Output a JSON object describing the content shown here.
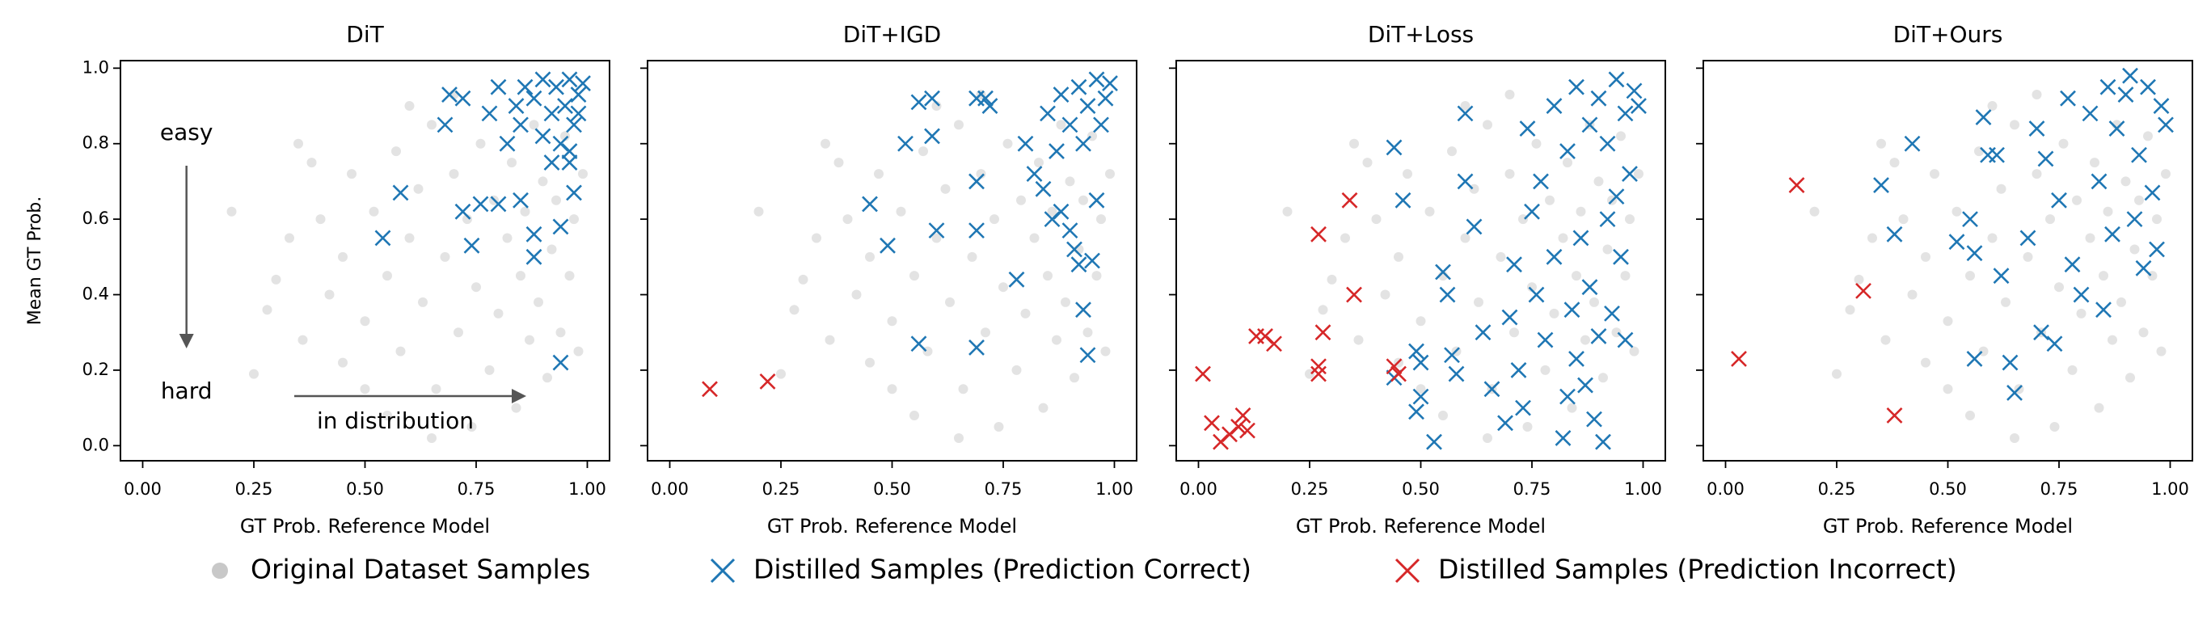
{
  "chart_data": [
    {
      "type": "scatter",
      "title": "DiT",
      "xlabel": "GT Prob. Reference Model",
      "ylabel": "Mean GT Prob.",
      "xlim": [
        -0.05,
        1.05
      ],
      "ylim": [
        -0.04,
        1.02
      ],
      "xticks": [
        {
          "value": 0,
          "label": "0.00"
        },
        {
          "value": 0.25,
          "label": "0.25"
        },
        {
          "value": 0.5,
          "label": "0.50"
        },
        {
          "value": 0.75,
          "label": "0.75"
        },
        {
          "value": 1,
          "label": "1.00"
        }
      ],
      "yticks": [
        {
          "value": 0,
          "label": "0.0"
        },
        {
          "value": 0.2,
          "label": "0.2"
        },
        {
          "value": 0.4,
          "label": "0.4"
        },
        {
          "value": 0.6,
          "label": "0.6"
        },
        {
          "value": 0.8,
          "label": "0.8"
        },
        {
          "value": 1,
          "label": "1.0"
        }
      ],
      "annotations": [
        "easy",
        "hard",
        "in distribution"
      ],
      "series": [
        {
          "name": "Original Dataset Samples",
          "color": "#c8c8c8",
          "x": [
            0.25,
            0.28,
            0.3,
            0.33,
            0.36,
            0.4,
            0.42,
            0.45,
            0.47,
            0.5,
            0.52,
            0.55,
            0.57,
            0.58,
            0.6,
            0.62,
            0.63,
            0.65,
            0.66,
            0.68,
            0.7,
            0.71,
            0.73,
            0.75,
            0.76,
            0.78,
            0.79,
            0.8,
            0.82,
            0.83,
            0.84,
            0.85,
            0.86,
            0.87,
            0.88,
            0.89,
            0.9,
            0.91,
            0.92,
            0.93,
            0.94,
            0.95,
            0.96,
            0.97,
            0.98,
            0.99,
            0.6,
            0.7,
            0.5,
            0.45,
            0.38,
            0.55,
            0.74,
            0.2,
            0.35,
            0.65
          ],
          "y": [
            0.19,
            0.36,
            0.44,
            0.55,
            0.28,
            0.6,
            0.4,
            0.5,
            0.72,
            0.33,
            0.62,
            0.45,
            0.78,
            0.25,
            0.55,
            0.68,
            0.38,
            0.85,
            0.15,
            0.5,
            0.72,
            0.3,
            0.6,
            0.42,
            0.8,
            0.2,
            0.65,
            0.35,
            0.55,
            0.75,
            0.1,
            0.45,
            0.62,
            0.28,
            0.85,
            0.38,
            0.7,
            0.18,
            0.52,
            0.65,
            0.3,
            0.82,
            0.45,
            0.6,
            0.25,
            0.72,
            0.9,
            0.93,
            0.15,
            0.22,
            0.75,
            0.08,
            0.05,
            0.62,
            0.8,
            0.02
          ]
        },
        {
          "name": "Distilled Samples (Prediction Correct)",
          "color": "#1f77b4",
          "x": [
            0.54,
            0.58,
            0.68,
            0.69,
            0.72,
            0.72,
            0.74,
            0.76,
            0.8,
            0.85,
            0.88,
            0.88,
            0.94,
            0.94,
            0.97,
            0.96,
            0.78,
            0.82,
            0.84,
            0.86,
            0.88,
            0.9,
            0.92,
            0.93,
            0.95,
            0.96,
            0.97,
            0.98,
            0.99,
            0.9,
            0.94,
            0.96,
            0.85,
            0.8,
            0.92,
            0.98
          ],
          "y": [
            0.55,
            0.67,
            0.85,
            0.93,
            0.92,
            0.62,
            0.53,
            0.64,
            0.64,
            0.65,
            0.56,
            0.5,
            0.58,
            0.22,
            0.67,
            0.75,
            0.88,
            0.8,
            0.9,
            0.95,
            0.92,
            0.97,
            0.88,
            0.95,
            0.9,
            0.97,
            0.85,
            0.93,
            0.96,
            0.82,
            0.8,
            0.78,
            0.85,
            0.95,
            0.75,
            0.88
          ]
        },
        {
          "name": "Distilled Samples (Prediction Incorrect)",
          "color": "#d62728",
          "x": [],
          "y": []
        }
      ]
    },
    {
      "type": "scatter",
      "title": "DiT+IGD",
      "xlabel": "GT Prob. Reference Model",
      "xlim": [
        -0.05,
        1.05
      ],
      "ylim": [
        -0.04,
        1.02
      ],
      "xticks": [
        {
          "value": 0,
          "label": "0.00"
        },
        {
          "value": 0.25,
          "label": "0.25"
        },
        {
          "value": 0.5,
          "label": "0.50"
        },
        {
          "value": 0.75,
          "label": "0.75"
        },
        {
          "value": 1,
          "label": "1.00"
        }
      ],
      "yticks": [
        0,
        0.2,
        0.4,
        0.6,
        0.8,
        1
      ],
      "series": [
        {
          "color": "#c8c8c8",
          "x": [
            0.25,
            0.28,
            0.3,
            0.33,
            0.36,
            0.4,
            0.42,
            0.45,
            0.47,
            0.5,
            0.52,
            0.55,
            0.57,
            0.58,
            0.6,
            0.62,
            0.63,
            0.65,
            0.66,
            0.68,
            0.7,
            0.71,
            0.73,
            0.75,
            0.76,
            0.78,
            0.79,
            0.8,
            0.82,
            0.83,
            0.84,
            0.85,
            0.86,
            0.87,
            0.88,
            0.89,
            0.9,
            0.91,
            0.92,
            0.93,
            0.94,
            0.95,
            0.96,
            0.97,
            0.98,
            0.99,
            0.6,
            0.7,
            0.5,
            0.45,
            0.38,
            0.55,
            0.74,
            0.2,
            0.35,
            0.65
          ],
          "y": [
            0.19,
            0.36,
            0.44,
            0.55,
            0.28,
            0.6,
            0.4,
            0.5,
            0.72,
            0.33,
            0.62,
            0.45,
            0.78,
            0.25,
            0.55,
            0.68,
            0.38,
            0.85,
            0.15,
            0.5,
            0.72,
            0.3,
            0.6,
            0.42,
            0.8,
            0.2,
            0.65,
            0.35,
            0.55,
            0.75,
            0.1,
            0.45,
            0.62,
            0.28,
            0.85,
            0.38,
            0.7,
            0.18,
            0.52,
            0.65,
            0.3,
            0.82,
            0.45,
            0.6,
            0.25,
            0.72,
            0.9,
            0.93,
            0.15,
            0.22,
            0.75,
            0.08,
            0.05,
            0.62,
            0.8,
            0.02
          ]
        },
        {
          "color": "#1f77b4",
          "x": [
            0.45,
            0.49,
            0.53,
            0.56,
            0.56,
            0.59,
            0.59,
            0.6,
            0.69,
            0.69,
            0.69,
            0.69,
            0.71,
            0.72,
            0.78,
            0.8,
            0.82,
            0.84,
            0.86,
            0.88,
            0.9,
            0.91,
            0.92,
            0.93,
            0.94,
            0.95,
            0.96,
            0.85,
            0.88,
            0.9,
            0.92,
            0.94,
            0.96,
            0.98,
            0.97,
            0.99,
            0.93,
            0.87
          ],
          "y": [
            0.64,
            0.53,
            0.8,
            0.91,
            0.27,
            0.92,
            0.82,
            0.57,
            0.92,
            0.7,
            0.57,
            0.26,
            0.92,
            0.9,
            0.44,
            0.8,
            0.72,
            0.68,
            0.6,
            0.62,
            0.57,
            0.52,
            0.48,
            0.36,
            0.24,
            0.49,
            0.65,
            0.88,
            0.93,
            0.85,
            0.95,
            0.9,
            0.97,
            0.92,
            0.85,
            0.96,
            0.8,
            0.78
          ]
        },
        {
          "color": "#d62728",
          "x": [
            0.09,
            0.22
          ],
          "y": [
            0.15,
            0.17
          ]
        }
      ]
    },
    {
      "type": "scatter",
      "title": "DiT+Loss",
      "xlabel": "GT Prob. Reference Model",
      "xlim": [
        -0.05,
        1.05
      ],
      "ylim": [
        -0.04,
        1.02
      ],
      "xticks": [
        {
          "value": 0,
          "label": "0.00"
        },
        {
          "value": 0.25,
          "label": "0.25"
        },
        {
          "value": 0.5,
          "label": "0.50"
        },
        {
          "value": 0.75,
          "label": "0.75"
        },
        {
          "value": 1,
          "label": "1.00"
        }
      ],
      "yticks": [
        0,
        0.2,
        0.4,
        0.6,
        0.8,
        1
      ],
      "series": [
        {
          "color": "#c8c8c8",
          "x": [
            0.25,
            0.28,
            0.3,
            0.33,
            0.36,
            0.4,
            0.42,
            0.45,
            0.47,
            0.5,
            0.52,
            0.55,
            0.57,
            0.58,
            0.6,
            0.62,
            0.63,
            0.65,
            0.66,
            0.68,
            0.7,
            0.71,
            0.73,
            0.75,
            0.76,
            0.78,
            0.79,
            0.8,
            0.82,
            0.83,
            0.84,
            0.85,
            0.86,
            0.87,
            0.88,
            0.89,
            0.9,
            0.91,
            0.92,
            0.93,
            0.94,
            0.95,
            0.96,
            0.97,
            0.98,
            0.99,
            0.6,
            0.7,
            0.5,
            0.45,
            0.38,
            0.55,
            0.74,
            0.2,
            0.35,
            0.65
          ],
          "y": [
            0.19,
            0.36,
            0.44,
            0.55,
            0.28,
            0.6,
            0.4,
            0.5,
            0.72,
            0.33,
            0.62,
            0.45,
            0.78,
            0.25,
            0.55,
            0.68,
            0.38,
            0.85,
            0.15,
            0.5,
            0.72,
            0.3,
            0.6,
            0.42,
            0.8,
            0.2,
            0.65,
            0.35,
            0.55,
            0.75,
            0.1,
            0.45,
            0.62,
            0.28,
            0.85,
            0.38,
            0.7,
            0.18,
            0.52,
            0.65,
            0.3,
            0.82,
            0.45,
            0.6,
            0.25,
            0.72,
            0.9,
            0.93,
            0.15,
            0.22,
            0.75,
            0.08,
            0.05,
            0.62,
            0.8,
            0.02
          ]
        },
        {
          "color": "#1f77b4",
          "x": [
            0.44,
            0.46,
            0.44,
            0.49,
            0.5,
            0.5,
            0.49,
            0.53,
            0.55,
            0.56,
            0.57,
            0.58,
            0.6,
            0.6,
            0.62,
            0.64,
            0.66,
            0.69,
            0.7,
            0.71,
            0.72,
            0.73,
            0.74,
            0.75,
            0.76,
            0.78,
            0.8,
            0.82,
            0.83,
            0.84,
            0.85,
            0.86,
            0.87,
            0.88,
            0.89,
            0.9,
            0.91,
            0.92,
            0.93,
            0.94,
            0.95,
            0.96,
            0.97,
            0.8,
            0.85,
            0.88,
            0.9,
            0.92,
            0.94,
            0.96,
            0.98,
            0.99,
            0.83,
            0.77
          ],
          "y": [
            0.79,
            0.65,
            0.18,
            0.25,
            0.22,
            0.13,
            0.09,
            0.01,
            0.46,
            0.4,
            0.24,
            0.19,
            0.88,
            0.7,
            0.58,
            0.3,
            0.15,
            0.06,
            0.34,
            0.48,
            0.2,
            0.1,
            0.84,
            0.62,
            0.4,
            0.28,
            0.5,
            0.02,
            0.13,
            0.36,
            0.23,
            0.55,
            0.16,
            0.42,
            0.07,
            0.29,
            0.01,
            0.6,
            0.35,
            0.66,
            0.5,
            0.28,
            0.72,
            0.9,
            0.95,
            0.85,
            0.92,
            0.8,
            0.97,
            0.88,
            0.94,
            0.9,
            0.78,
            0.7
          ]
        },
        {
          "color": "#d62728",
          "x": [
            0.01,
            0.03,
            0.05,
            0.07,
            0.09,
            0.1,
            0.11,
            0.13,
            0.15,
            0.17,
            0.27,
            0.27,
            0.27,
            0.28,
            0.34,
            0.35,
            0.44,
            0.45
          ],
          "y": [
            0.19,
            0.06,
            0.01,
            0.03,
            0.05,
            0.08,
            0.04,
            0.29,
            0.29,
            0.27,
            0.56,
            0.21,
            0.19,
            0.3,
            0.65,
            0.4,
            0.21,
            0.19
          ]
        }
      ]
    },
    {
      "type": "scatter",
      "title": "DiT+Ours",
      "xlabel": "GT Prob. Reference Model",
      "xlim": [
        -0.05,
        1.05
      ],
      "ylim": [
        -0.04,
        1.02
      ],
      "xticks": [
        {
          "value": 0,
          "label": "0.00"
        },
        {
          "value": 0.25,
          "label": "0.25"
        },
        {
          "value": 0.5,
          "label": "0.50"
        },
        {
          "value": 0.75,
          "label": "0.75"
        },
        {
          "value": 1,
          "label": "1.00"
        }
      ],
      "yticks": [
        0,
        0.2,
        0.4,
        0.6,
        0.8,
        1
      ],
      "series": [
        {
          "color": "#c8c8c8",
          "x": [
            0.25,
            0.28,
            0.3,
            0.33,
            0.36,
            0.4,
            0.42,
            0.45,
            0.47,
            0.5,
            0.52,
            0.55,
            0.57,
            0.58,
            0.6,
            0.62,
            0.63,
            0.65,
            0.66,
            0.68,
            0.7,
            0.71,
            0.73,
            0.75,
            0.76,
            0.78,
            0.79,
            0.8,
            0.82,
            0.83,
            0.84,
            0.85,
            0.86,
            0.87,
            0.88,
            0.89,
            0.9,
            0.91,
            0.92,
            0.93,
            0.94,
            0.95,
            0.96,
            0.97,
            0.98,
            0.99,
            0.6,
            0.7,
            0.5,
            0.45,
            0.38,
            0.55,
            0.74,
            0.2,
            0.35,
            0.65
          ],
          "y": [
            0.19,
            0.36,
            0.44,
            0.55,
            0.28,
            0.6,
            0.4,
            0.5,
            0.72,
            0.33,
            0.62,
            0.45,
            0.78,
            0.25,
            0.55,
            0.68,
            0.38,
            0.85,
            0.15,
            0.5,
            0.72,
            0.3,
            0.6,
            0.42,
            0.8,
            0.2,
            0.65,
            0.35,
            0.55,
            0.75,
            0.1,
            0.45,
            0.62,
            0.28,
            0.85,
            0.38,
            0.7,
            0.18,
            0.52,
            0.65,
            0.3,
            0.82,
            0.45,
            0.6,
            0.25,
            0.72,
            0.9,
            0.93,
            0.15,
            0.22,
            0.75,
            0.08,
            0.05,
            0.62,
            0.8,
            0.02
          ]
        },
        {
          "color": "#1f77b4",
          "x": [
            0.35,
            0.38,
            0.42,
            0.52,
            0.55,
            0.56,
            0.56,
            0.58,
            0.59,
            0.61,
            0.62,
            0.64,
            0.65,
            0.68,
            0.7,
            0.71,
            0.72,
            0.74,
            0.75,
            0.77,
            0.78,
            0.8,
            0.82,
            0.84,
            0.85,
            0.87,
            0.88,
            0.9,
            0.92,
            0.93,
            0.94,
            0.95,
            0.96,
            0.97,
            0.98,
            0.99,
            0.86,
            0.91
          ],
          "y": [
            0.69,
            0.56,
            0.8,
            0.54,
            0.6,
            0.23,
            0.51,
            0.87,
            0.77,
            0.77,
            0.45,
            0.22,
            0.14,
            0.55,
            0.84,
            0.3,
            0.76,
            0.27,
            0.65,
            0.92,
            0.48,
            0.4,
            0.88,
            0.7,
            0.36,
            0.56,
            0.84,
            0.93,
            0.6,
            0.77,
            0.47,
            0.95,
            0.67,
            0.52,
            0.9,
            0.85,
            0.95,
            0.98
          ]
        },
        {
          "color": "#d62728",
          "x": [
            0.03,
            0.16,
            0.31,
            0.38
          ],
          "y": [
            0.23,
            0.69,
            0.41,
            0.08
          ]
        }
      ]
    }
  ]
}
